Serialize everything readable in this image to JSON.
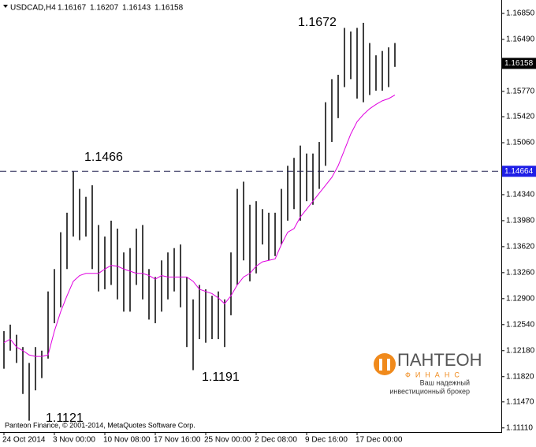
{
  "chart_data": {
    "type": "ohlc",
    "symbol": "USDCAD,H4",
    "header_prices": [
      "1.16167",
      "1.16207",
      "1.16143",
      "1.16158"
    ],
    "categories": [
      "24 Oct 2014",
      null,
      null,
      null,
      null,
      null,
      null,
      null,
      "3 Nov 00:00",
      null,
      null,
      null,
      null,
      null,
      null,
      null,
      "10 Nov 08:00",
      null,
      null,
      null,
      null,
      null,
      null,
      null,
      "17 Nov 16:00",
      null,
      null,
      null,
      null,
      null,
      null,
      null,
      "25 Nov 00:00",
      null,
      null,
      null,
      null,
      null,
      null,
      null,
      "2 Dec 08:00",
      null,
      null,
      null,
      null,
      null,
      null,
      null,
      "9 Dec 16:00",
      null,
      null,
      null,
      null,
      null,
      null,
      null,
      "17 Dec 00:00",
      null,
      null,
      null,
      null,
      null,
      null
    ],
    "high": [
      1.1245,
      1.1254,
      1.124,
      1.1223,
      1.1201,
      1.1223,
      1.1218,
      1.13,
      1.1331,
      1.1382,
      1.1409,
      1.1466,
      1.1442,
      1.1431,
      1.1447,
      1.1392,
      1.1376,
      1.1398,
      1.1387,
      1.1354,
      1.136,
      1.1387,
      1.1392,
      1.1331,
      1.132,
      1.1343,
      1.1354,
      1.136,
      1.1365,
      1.132,
      1.1289,
      1.1309,
      1.1303,
      1.1294,
      1.13,
      1.1289,
      1.1354,
      1.1442,
      1.1452,
      1.142,
      1.1425,
      1.1414,
      1.1409,
      1.1409,
      1.1442,
      1.1474,
      1.1485,
      1.1502,
      1.1491,
      1.1491,
      1.1507,
      1.1562,
      1.1594,
      1.16,
      1.1665,
      1.166,
      1.1665,
      1.1672,
      1.1644,
      1.1627,
      1.1633,
      1.1638,
      1.1644
    ],
    "low": [
      1.1193,
      1.1218,
      1.1201,
      1.1158,
      1.1121,
      1.1163,
      1.118,
      1.1207,
      1.1256,
      1.1278,
      1.1331,
      1.1376,
      1.1371,
      1.1376,
      1.1331,
      1.13,
      1.1303,
      1.1309,
      1.1289,
      1.1272,
      1.1272,
      1.1309,
      1.1289,
      1.1261,
      1.1256,
      1.1272,
      1.1289,
      1.13,
      1.1278,
      1.1223,
      1.1191,
      1.1234,
      1.1229,
      1.1234,
      1.1234,
      1.1223,
      1.1267,
      1.1309,
      1.1343,
      1.1314,
      1.1325,
      1.1365,
      1.1343,
      1.1349,
      1.1365,
      1.1398,
      1.1414,
      1.1398,
      1.1425,
      1.142,
      1.1442,
      1.1474,
      1.1507,
      1.154,
      1.1583,
      1.1594,
      1.1567,
      1.1562,
      1.1572,
      1.1578,
      1.1578,
      1.1583,
      1.1611
    ],
    "bar_color": "#000000",
    "ma": {
      "color": "#e000e0",
      "values": [
        1.1229,
        1.1234,
        1.1223,
        1.1218,
        1.1212,
        1.121,
        1.121,
        1.1212,
        1.1245,
        1.1272,
        1.1294,
        1.1314,
        1.1322,
        1.1325,
        1.1325,
        1.1325,
        1.1331,
        1.1336,
        1.1335,
        1.1331,
        1.1328,
        1.1325,
        1.1325,
        1.1322,
        1.1317,
        1.1322,
        1.132,
        1.132,
        1.132,
        1.132,
        1.1314,
        1.1303,
        1.13,
        1.1297,
        1.1291,
        1.1283,
        1.1294,
        1.1309,
        1.132,
        1.1325,
        1.1335,
        1.1341,
        1.1343,
        1.1345,
        1.1365,
        1.1382,
        1.1387,
        1.1403,
        1.1414,
        1.1425,
        1.1436,
        1.1447,
        1.1458,
        1.1474,
        1.1496,
        1.1518,
        1.1535,
        1.1545,
        1.1553,
        1.1559,
        1.1564,
        1.1567,
        1.1572
      ]
    },
    "ylim": [
      1.11053,
      1.17036
    ],
    "yticks": [
      {
        "value": 1.1685,
        "label": "1.16850"
      },
      {
        "value": 1.1649,
        "label": "1.16490"
      },
      {
        "value": 1.1577,
        "label": "1.15770"
      },
      {
        "value": 1.1542,
        "label": "1.15420"
      },
      {
        "value": 1.1506,
        "label": "1.15060"
      },
      {
        "value": 1.1434,
        "label": "1.14340"
      },
      {
        "value": 1.1398,
        "label": "1.13980"
      },
      {
        "value": 1.1362,
        "label": "1.13620"
      },
      {
        "value": 1.1326,
        "label": "1.13260"
      },
      {
        "value": 1.129,
        "label": "1.12900"
      },
      {
        "value": 1.1254,
        "label": "1.12540"
      },
      {
        "value": 1.1218,
        "label": "1.12180"
      },
      {
        "value": 1.1182,
        "label": "1.11820"
      },
      {
        "value": 1.1147,
        "label": "1.11470"
      },
      {
        "value": 1.1111,
        "label": "1.11110"
      }
    ],
    "current_price": {
      "value": 1.16158,
      "color": "#000000"
    },
    "hline": {
      "value": 1.14664,
      "color": "#1e1ee6",
      "line_color": "#202050"
    },
    "annotations": [
      "1.1672",
      "1.1466",
      "1.1191",
      "1.1121"
    ],
    "copyright": "Panteon Finance, © 2001-2014, MetaQuotes Software Corp."
  },
  "logo": {
    "name": "ПАНТЕОН",
    "sub": "ФИНАНС",
    "tagline": [
      "Ваш надежный",
      "инвестиционный брокер"
    ]
  }
}
